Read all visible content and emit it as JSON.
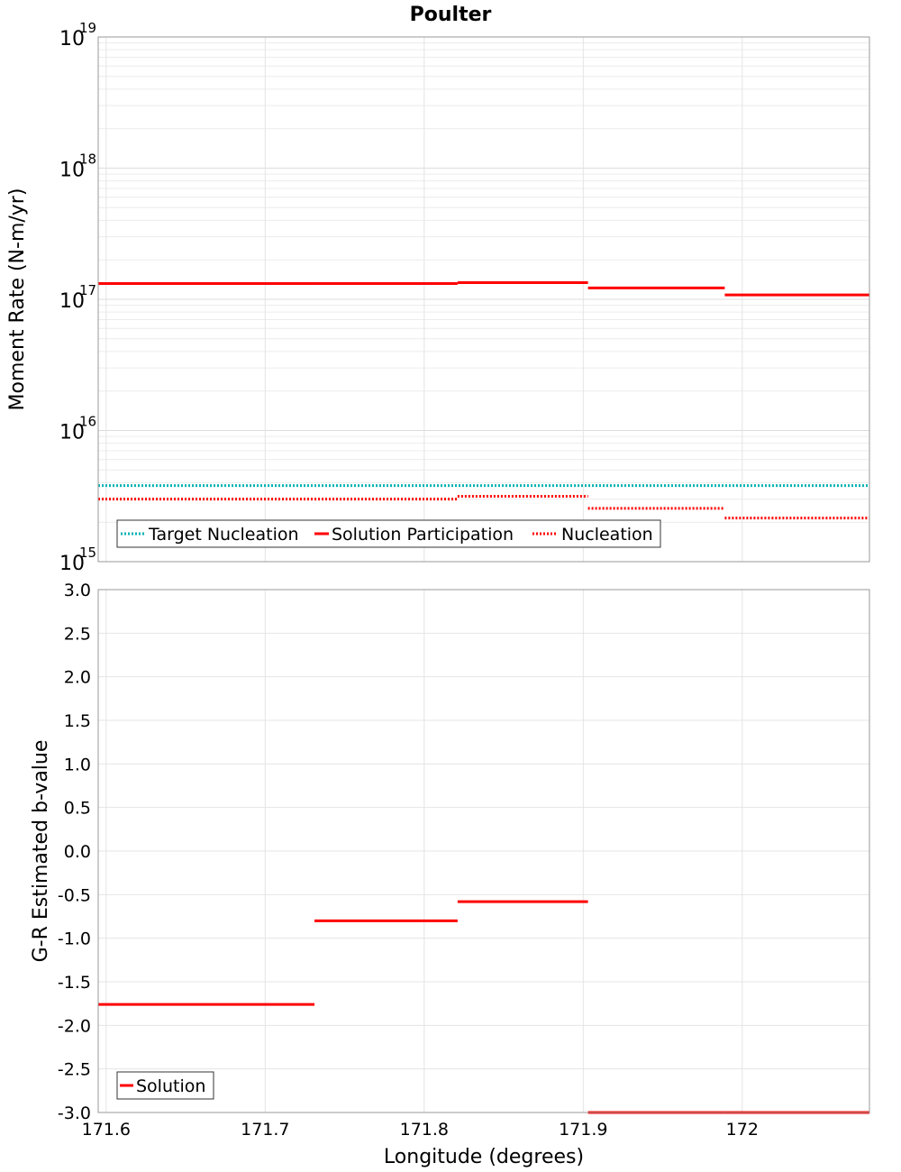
{
  "chart_data": [
    {
      "type": "line",
      "title": "Poulter",
      "ylabel": "Moment Rate (N-m/yr)",
      "xlabel": "",
      "yscale": "log",
      "ylim": [
        1000000000000000.0,
        1e+19
      ],
      "xlim": [
        171.595,
        172.08
      ],
      "grid": true,
      "legend_position": "bottom-left",
      "y_ticks": [
        {
          "base": "10",
          "exp": "15"
        },
        {
          "base": "10",
          "exp": "16"
        },
        {
          "base": "10",
          "exp": "17"
        },
        {
          "base": "10",
          "exp": "18"
        },
        {
          "base": "10",
          "exp": "19"
        }
      ],
      "series": [
        {
          "name": "Target Nucleation",
          "color": "#00b3b3",
          "style": "dotted",
          "segments": [
            {
              "x0": 171.595,
              "x1": 172.08,
              "y": 3800000000000000.0
            }
          ]
        },
        {
          "name": "Solution Participation",
          "color": "#ff0000",
          "style": "solid",
          "segments": [
            {
              "x0": 171.595,
              "x1": 171.663,
              "y": 1.32e+17
            },
            {
              "x0": 171.663,
              "x1": 171.731,
              "y": 1.32e+17
            },
            {
              "x0": 171.731,
              "x1": 171.821,
              "y": 1.32e+17
            },
            {
              "x0": 171.821,
              "x1": 171.903,
              "y": 1.34e+17
            },
            {
              "x0": 171.903,
              "x1": 171.989,
              "y": 1.22e+17
            },
            {
              "x0": 171.989,
              "x1": 172.08,
              "y": 1.08e+17
            }
          ]
        },
        {
          "name": "Nucleation",
          "color": "#ff0000",
          "style": "dotted",
          "segments": [
            {
              "x0": 171.595,
              "x1": 171.663,
              "y": 3000000000000000.0
            },
            {
              "x0": 171.663,
              "x1": 171.731,
              "y": 3000000000000000.0
            },
            {
              "x0": 171.731,
              "x1": 171.821,
              "y": 3000000000000000.0
            },
            {
              "x0": 171.821,
              "x1": 171.903,
              "y": 3150000000000000.0
            },
            {
              "x0": 171.903,
              "x1": 171.989,
              "y": 2550000000000000.0
            },
            {
              "x0": 171.989,
              "x1": 172.08,
              "y": 2150000000000000.0
            }
          ]
        }
      ]
    },
    {
      "type": "line",
      "title": "",
      "ylabel": "G-R Estimated b-value",
      "xlabel": "Longitude (degrees)",
      "ylim": [
        -3.0,
        3.0
      ],
      "xlim": [
        171.595,
        172.08
      ],
      "grid": true,
      "legend_position": "bottom-left",
      "y_ticks": [
        "3.0",
        "2.5",
        "2.0",
        "1.5",
        "1.0",
        "0.5",
        "0.0",
        "-0.5",
        "-1.0",
        "-1.5",
        "-2.0",
        "-2.5",
        "-3.0"
      ],
      "x_ticks": [
        "171.6",
        "171.7",
        "171.8",
        "171.9",
        "172"
      ],
      "series": [
        {
          "name": "Solution",
          "color": "#ff0000",
          "style": "solid",
          "segments": [
            {
              "x0": 171.595,
              "x1": 171.663,
              "y": -1.76
            },
            {
              "x0": 171.663,
              "x1": 171.731,
              "y": -1.76
            },
            {
              "x0": 171.731,
              "x1": 171.821,
              "y": -0.8
            },
            {
              "x0": 171.821,
              "x1": 171.903,
              "y": -0.58
            },
            {
              "x0": 171.903,
              "x1": 171.989,
              "y": -3.0
            },
            {
              "x0": 171.989,
              "x1": 172.08,
              "y": -3.0
            }
          ]
        }
      ]
    }
  ]
}
